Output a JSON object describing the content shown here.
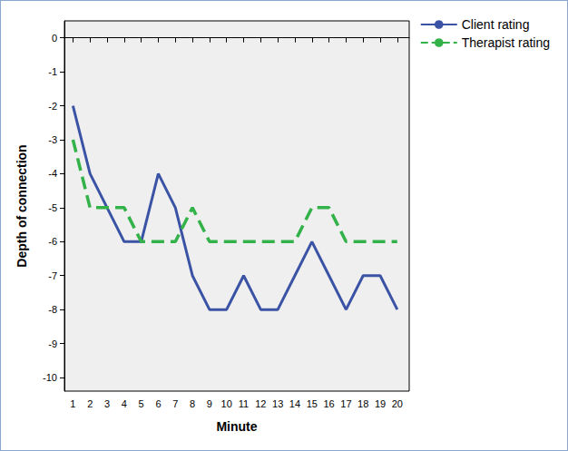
{
  "chart_data": {
    "type": "line",
    "x_label": "Minute",
    "y_label": "Depth of connection",
    "x": [
      1,
      2,
      3,
      4,
      5,
      6,
      7,
      8,
      9,
      10,
      11,
      12,
      13,
      14,
      15,
      16,
      17,
      18,
      19,
      20
    ],
    "series": [
      {
        "name": "Client rating",
        "color": "#3b53a4",
        "line_style": "solid",
        "values": [
          -2,
          -4,
          -5,
          -6,
          -6,
          -4,
          -5,
          -7,
          -8,
          -8,
          -7,
          -8,
          -8,
          -7,
          -6,
          -7,
          -8,
          -7,
          -7,
          -8
        ]
      },
      {
        "name": "Therapist rating",
        "color": "#33b24a",
        "line_style": "dashed",
        "values": [
          -3,
          -5,
          -5,
          -5,
          -6,
          -6,
          -6,
          -5,
          -6,
          -6,
          -6,
          -6,
          -6,
          -6,
          -5,
          -5,
          -6,
          -6,
          -6,
          -6
        ]
      }
    ],
    "xlim": [
      0.5,
      20.7
    ],
    "ylim": [
      -10.4,
      0.5
    ],
    "xticks": [
      1,
      2,
      3,
      4,
      5,
      6,
      7,
      8,
      9,
      10,
      11,
      12,
      13,
      14,
      15,
      16,
      17,
      18,
      19,
      20
    ],
    "yticks": [
      -10,
      -9,
      -8,
      -7,
      -6,
      -5,
      -4,
      -3,
      -2,
      -1,
      0
    ],
    "grid": false,
    "legend": "right"
  }
}
